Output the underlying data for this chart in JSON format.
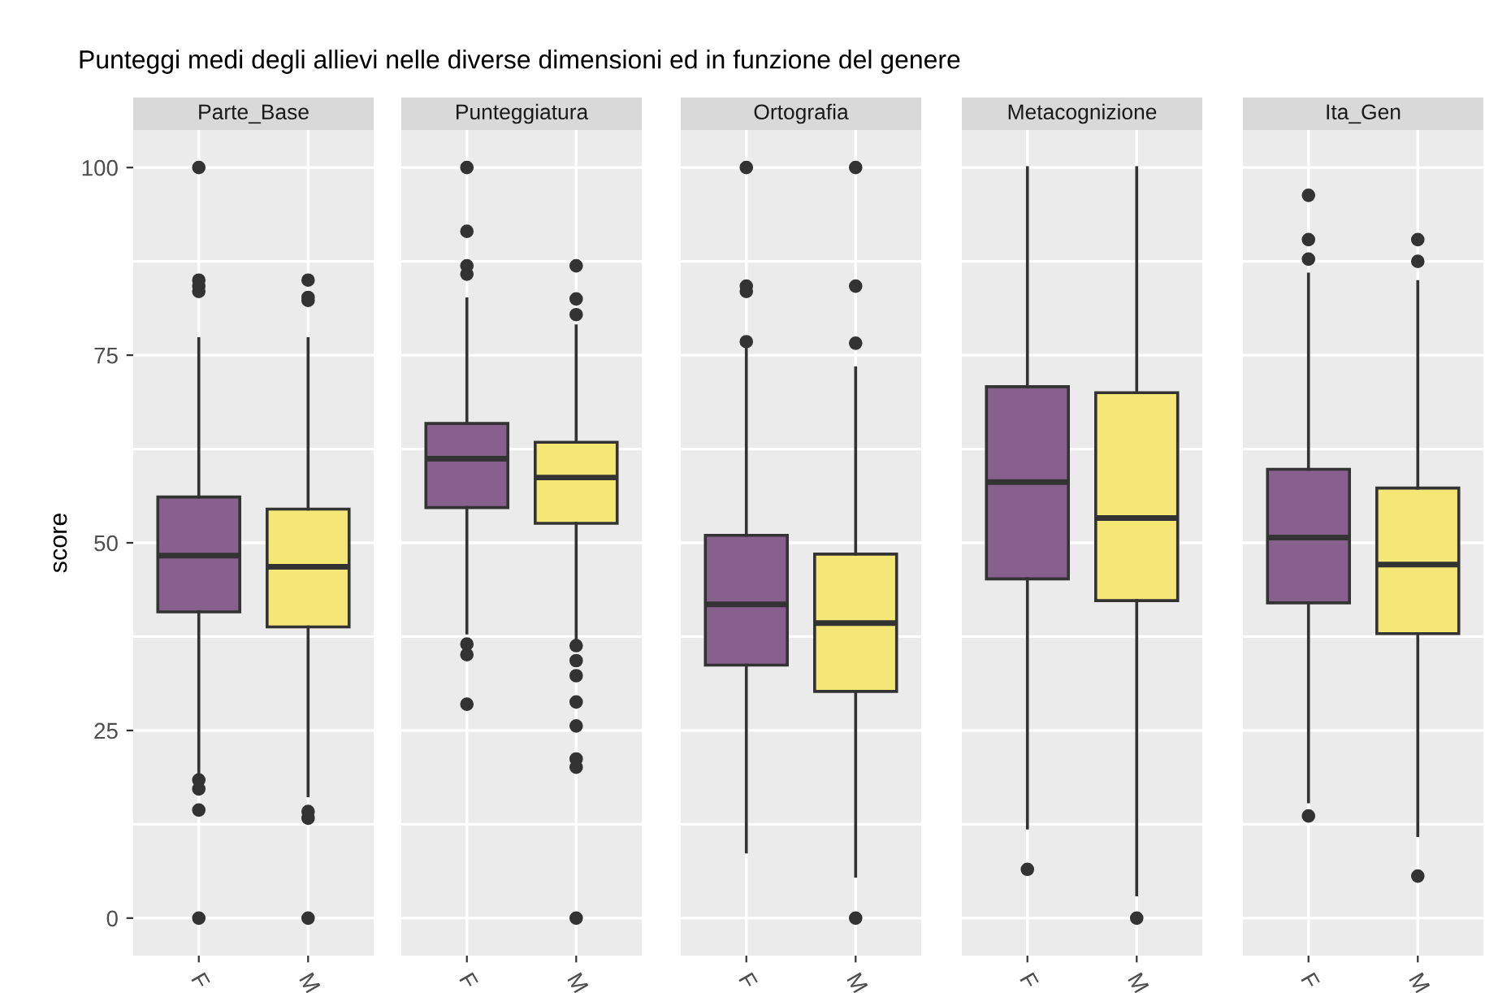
{
  "chart_data": [
    {
      "type": "box",
      "title": "Parte_Base",
      "ylabel": "score",
      "annotations": [
        "Punteggi medi degli allievi nelle diverse dimensioni ed in funzione del genere"
      ],
      "categories": [
        "F",
        "M"
      ],
      "colors": [
        "#87608e",
        "#f5e776"
      ],
      "boxes": [
        {
          "low": 19.1,
          "q1": 40.8,
          "median": 48.3,
          "q3": 56.1,
          "high": 77.2,
          "outliers": [
            100,
            85,
            84.2,
            83.5,
            18.4,
            17.2,
            14.4,
            0
          ]
        },
        {
          "low": 16.3,
          "q1": 38.8,
          "median": 46.8,
          "q3": 54.5,
          "high": 77.2,
          "outliers": [
            85,
            82.7,
            82.3,
            14.2,
            13.3,
            0
          ]
        }
      ],
      "ylim": [
        -5,
        105
      ],
      "yticks": [
        0,
        {
          "value": 12.5,
          "label": null
        },
        25,
        {
          "value": 37.5,
          "label": null
        },
        50,
        {
          "value": 62.5,
          "label": null
        },
        75,
        {
          "value": 87.5,
          "label": null
        },
        100
      ],
      "grid": true
    },
    {
      "type": "box",
      "title": "Punteggiatura",
      "categories": [
        "F",
        "M"
      ],
      "colors": [
        "#87608e",
        "#f5e776"
      ],
      "boxes": [
        {
          "low": 38,
          "q1": 54.7,
          "median": 61.2,
          "q3": 65.9,
          "high": 82.5,
          "outliers": [
            100,
            91.5,
            86.9,
            85.8,
            36.5,
            35.1,
            28.5
          ]
        },
        {
          "low": 36.6,
          "q1": 52.6,
          "median": 58.7,
          "q3": 63.4,
          "high": 78.9,
          "outliers": [
            86.9,
            82.5,
            80.4,
            36.3,
            34.3,
            32.3,
            28.8,
            25.6,
            21.2,
            20.1,
            0
          ]
        }
      ],
      "ylim": [
        -5,
        105
      ],
      "yticks": [
        0,
        {
          "value": 12.5,
          "label": null
        },
        25,
        {
          "value": 37.5,
          "label": null
        },
        50,
        {
          "value": 62.5,
          "label": null
        },
        75,
        {
          "value": 87.5,
          "label": null
        },
        100
      ],
      "grid": true,
      "tick_labels": "x"
    },
    {
      "type": "box",
      "title": "Ortografia",
      "categories": [
        "F",
        "M"
      ],
      "colors": [
        "#87608e",
        "#f5e776"
      ],
      "boxes": [
        {
          "low": 8.8,
          "q1": 33.7,
          "median": 41.8,
          "q3": 51,
          "high": 76.6,
          "outliers": [
            100,
            84.2,
            83.5,
            76.8
          ]
        },
        {
          "low": 5.6,
          "q1": 30.2,
          "median": 39.3,
          "q3": 48.5,
          "high": 73.3,
          "outliers": [
            100,
            84.2,
            76.6,
            0
          ]
        }
      ],
      "ylim": [
        -5,
        105
      ],
      "yticks": [
        0,
        {
          "value": 12.5,
          "label": null
        },
        25,
        {
          "value": 37.5,
          "label": null
        },
        50,
        {
          "value": 62.5,
          "label": null
        },
        75,
        {
          "value": 87.5,
          "label": null
        },
        100
      ],
      "grid": true,
      "tick_labels": "x"
    },
    {
      "type": "box",
      "title": "Metacognizione",
      "categories": [
        "F",
        "M"
      ],
      "colors": [
        "#87608e",
        "#f5e776"
      ],
      "boxes": [
        {
          "low": 12,
          "q1": 45.2,
          "median": 58.1,
          "q3": 70.8,
          "high": 100,
          "outliers": [
            6.5
          ]
        },
        {
          "low": 3.1,
          "q1": 42.3,
          "median": 53.3,
          "q3": 70,
          "high": 100,
          "outliers": [
            0
          ]
        }
      ],
      "ylim": [
        -5,
        105
      ],
      "yticks": [
        0,
        {
          "value": 12.5,
          "label": null
        },
        25,
        {
          "value": 37.5,
          "label": null
        },
        50,
        {
          "value": 62.5,
          "label": null
        },
        75,
        {
          "value": 87.5,
          "label": null
        },
        100
      ],
      "grid": true,
      "tick_labels": "x"
    },
    {
      "type": "box",
      "title": "Ita_Gen",
      "categories": [
        "F",
        "M"
      ],
      "colors": [
        "#87608e",
        "#f5e776"
      ],
      "boxes": [
        {
          "low": 15.5,
          "q1": 42,
          "median": 50.7,
          "q3": 59.8,
          "high": 85.8,
          "outliers": [
            96.3,
            90.4,
            87.8,
            13.6
          ]
        },
        {
          "low": 11,
          "q1": 37.9,
          "median": 47.1,
          "q3": 57.3,
          "high": 84.8,
          "outliers": [
            90.4,
            87.5,
            5.6
          ]
        }
      ],
      "ylim": [
        -5,
        105
      ],
      "yticks": [
        0,
        {
          "value": 12.5,
          "label": null
        },
        25,
        {
          "value": 37.5,
          "label": null
        },
        50,
        {
          "value": 62.5,
          "label": null
        },
        75,
        {
          "value": 87.5,
          "label": null
        },
        100
      ],
      "grid": true,
      "tick_labels": "x"
    }
  ]
}
